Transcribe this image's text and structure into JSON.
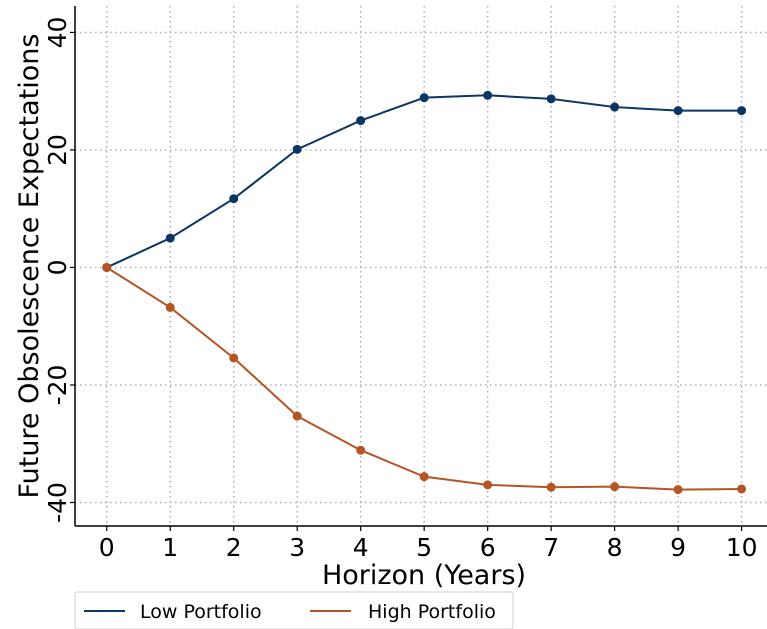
{
  "chart_data": {
    "type": "line",
    "xlabel": "Horizon (Years)",
    "ylabel": "Future Obsolescence Expectations",
    "x": [
      0,
      1,
      2,
      3,
      4,
      5,
      6,
      7,
      8,
      9,
      10
    ],
    "xticks": [
      "0",
      "1",
      "2",
      "3",
      "4",
      "5",
      "6",
      "7",
      "8",
      "9",
      "10"
    ],
    "yticks": [
      -40,
      -20,
      0,
      20,
      40
    ],
    "xlim": [
      -0.5,
      10.4
    ],
    "ylim": [
      -44,
      44.5
    ],
    "grid": true,
    "legend_position": "bottom-left",
    "series": [
      {
        "name": "Low Portfolio",
        "color": "#0b3564",
        "values": [
          0,
          5,
          11.7,
          20.1,
          25,
          28.9,
          29.3,
          28.7,
          27.3,
          26.7,
          26.7
        ]
      },
      {
        "name": "High Portfolio",
        "color": "#b55425",
        "values": [
          0,
          -6.8,
          -15.4,
          -25.3,
          -31.1,
          -35.6,
          -37,
          -37.4,
          -37.3,
          -37.8,
          -37.7
        ]
      }
    ]
  }
}
